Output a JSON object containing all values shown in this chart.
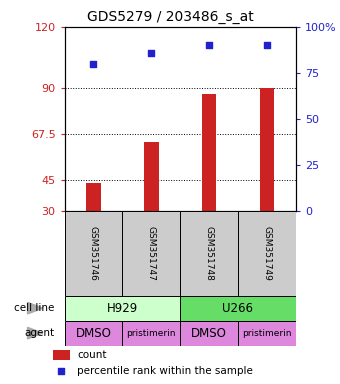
{
  "title": "GDS5279 / 203486_s_at",
  "samples": [
    "GSM351746",
    "GSM351747",
    "GSM351748",
    "GSM351749"
  ],
  "bar_values": [
    44,
    64,
    87,
    90
  ],
  "scatter_values": [
    80,
    86,
    90,
    90
  ],
  "left_ylim": [
    30,
    120
  ],
  "left_yticks": [
    30,
    45,
    67.5,
    90,
    120
  ],
  "left_ytick_labels": [
    "30",
    "45",
    "67.5",
    "90",
    "120"
  ],
  "right_ylim": [
    0,
    100
  ],
  "right_yticks": [
    0,
    25,
    50,
    75,
    100
  ],
  "right_ytick_labels": [
    "0",
    "25",
    "50",
    "75",
    "100%"
  ],
  "hline_values": [
    45,
    67.5,
    90
  ],
  "bar_color": "#cc2222",
  "scatter_color": "#2222cc",
  "bar_bottom": 30,
  "cell_line_labels": [
    "H929",
    "U266"
  ],
  "cell_line_colors": [
    "#ccffcc",
    "#66dd66"
  ],
  "cell_line_spans": [
    [
      0,
      2
    ],
    [
      2,
      4
    ]
  ],
  "agent_labels": [
    "DMSO",
    "pristimerin",
    "DMSO",
    "pristimerin"
  ],
  "agent_color": "#dd88dd",
  "agent_label_fontsize_small": [
    false,
    true,
    false,
    true
  ],
  "row_label_cell_line": "cell line",
  "row_label_agent": "agent",
  "legend_count": "count",
  "legend_percentile": "percentile rank within the sample",
  "title_fontsize": 10,
  "axis_label_color_left": "#cc2222",
  "axis_label_color_right": "#2222cc",
  "sample_box_color": "#cccccc"
}
